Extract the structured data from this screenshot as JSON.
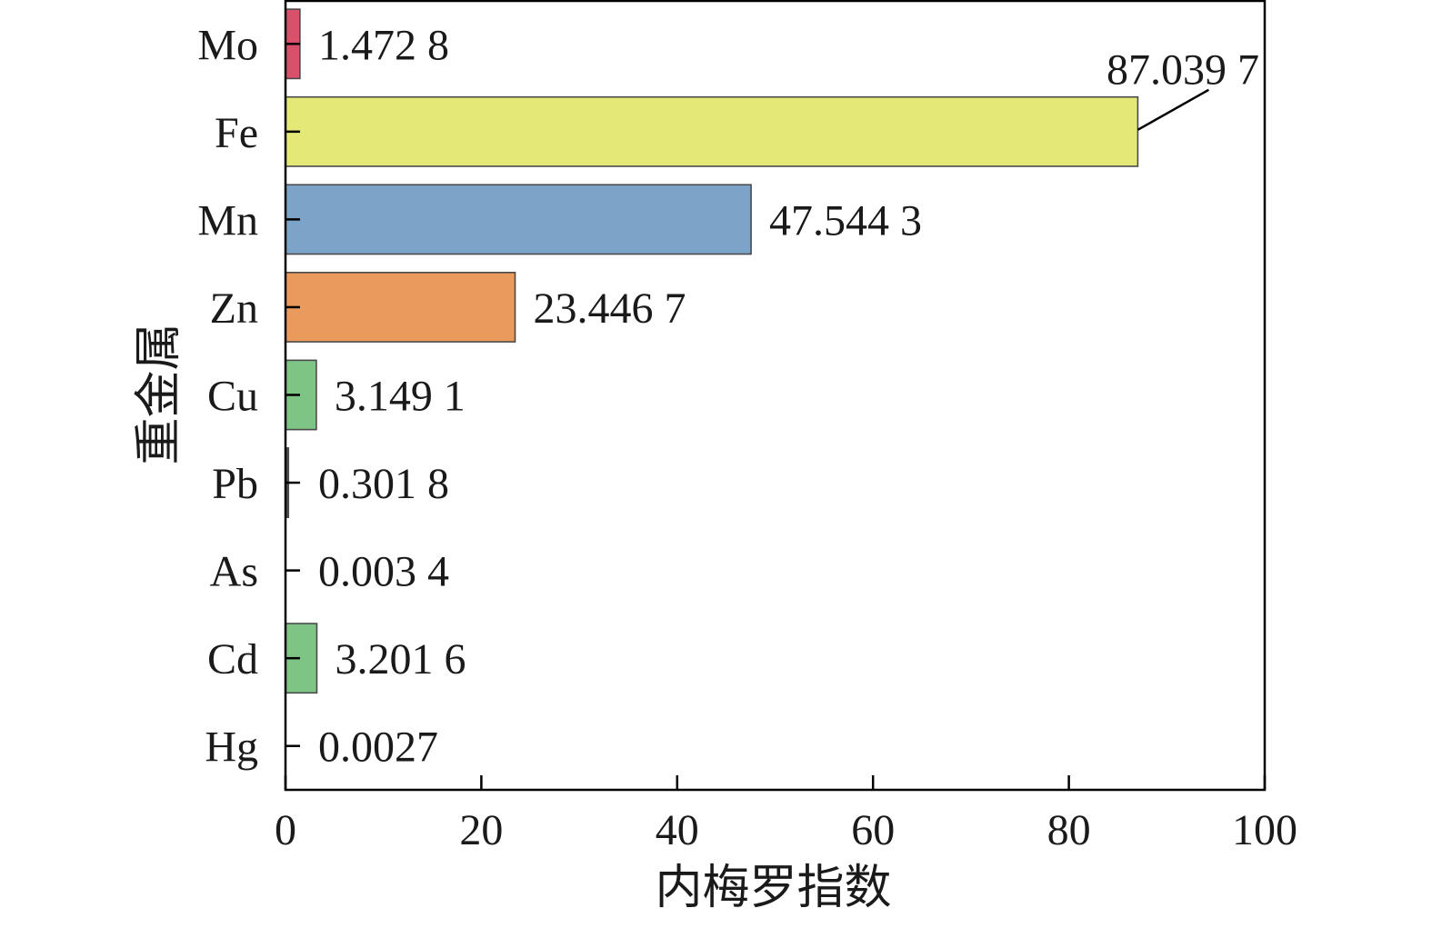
{
  "chart_data": {
    "type": "bar",
    "orientation": "horizontal",
    "title": "",
    "xlabel": "内梅罗指数",
    "ylabel": "重金属",
    "xlim": [
      0,
      100
    ],
    "xticks": [
      0,
      20,
      40,
      60,
      80,
      100
    ],
    "grid": false,
    "categories": [
      "Mo",
      "Fe",
      "Mn",
      "Zn",
      "Cu",
      "Pb",
      "As",
      "Cd",
      "Hg"
    ],
    "values": [
      1.4728,
      87.0397,
      47.5443,
      23.4467,
      3.1491,
      0.3018,
      0.0034,
      3.2016,
      0.0027
    ],
    "data_labels": [
      "1.472 8",
      "87.039 7",
      "47.544 3",
      "23.446 7",
      "3.149 1",
      "0.301 8",
      "0.003 4",
      "3.201 6",
      "0.0027"
    ],
    "colors": [
      "#d9506a",
      "#e3e876",
      "#7ba4c8",
      "#ea9a5c",
      "#7ec484",
      "#555555",
      "#7ec484",
      "#7ec484",
      "#7ec484"
    ]
  }
}
